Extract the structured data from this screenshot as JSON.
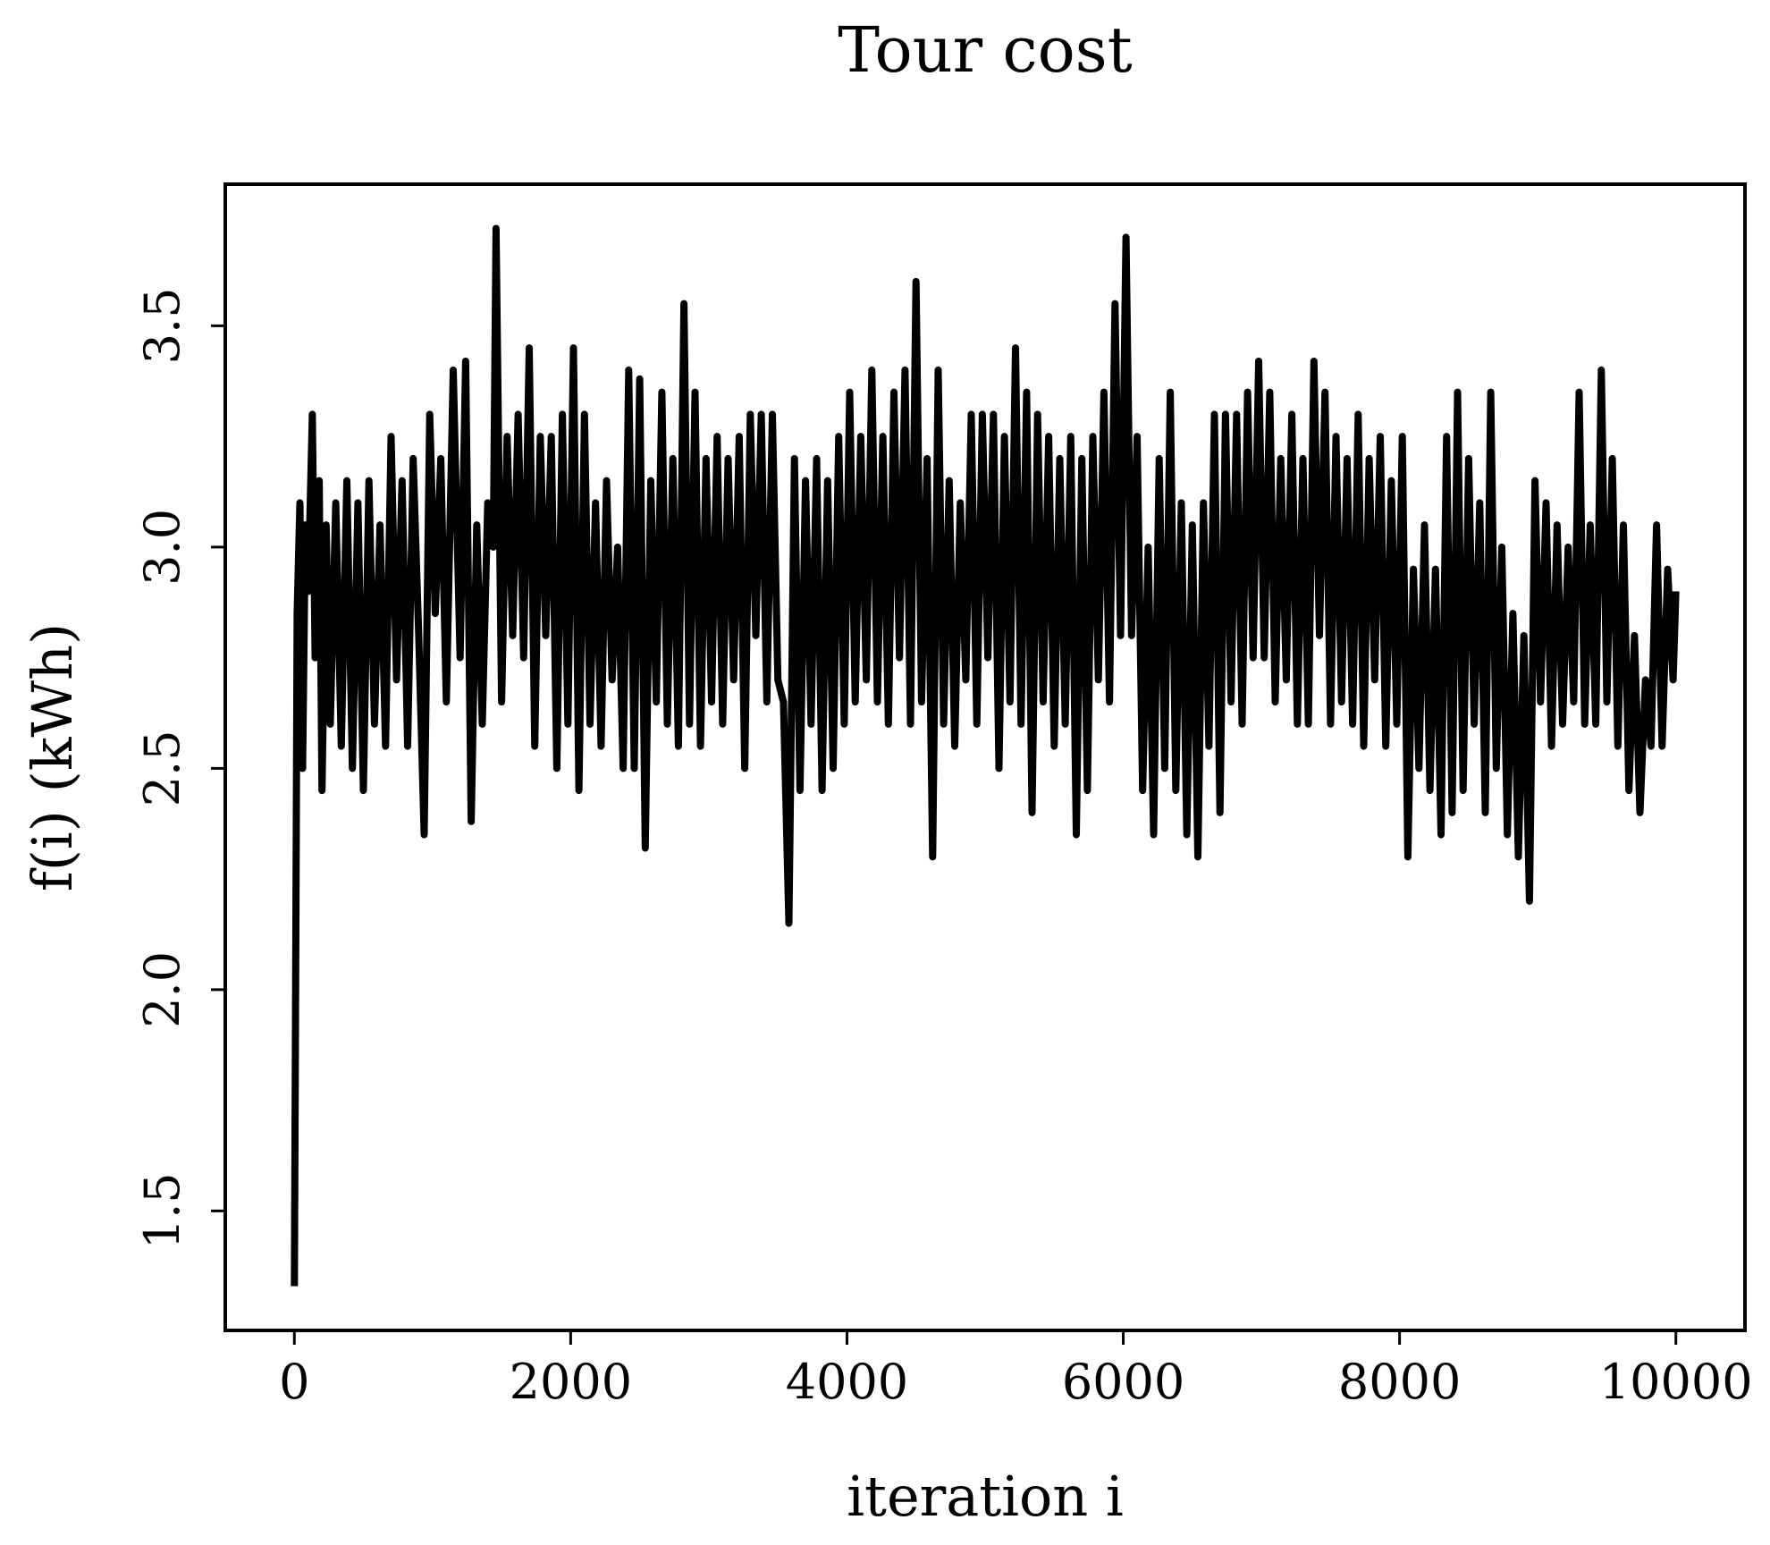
{
  "chart_data": {
    "type": "line",
    "title": "Tour cost",
    "xlabel": "iteration i",
    "ylabel": "f(i) (kWh)",
    "xlim": [
      -500,
      10500
    ],
    "ylim": [
      1.23,
      3.82
    ],
    "xticks": [
      0,
      2000,
      4000,
      6000,
      8000,
      10000
    ],
    "xtick_labels": [
      "0",
      "2000",
      "4000",
      "6000",
      "8000",
      "10000"
    ],
    "yticks": [
      1.5,
      2.0,
      2.5,
      3.0,
      3.5
    ],
    "ytick_labels": [
      "1.5",
      "2.0",
      "2.5",
      "3.0",
      "3.5"
    ],
    "grid": false,
    "line_color": "#000000",
    "series": [
      {
        "x": [
          0,
          10,
          20,
          40,
          60,
          80,
          100,
          130,
          150,
          180,
          200,
          230,
          260,
          300,
          340,
          380,
          420,
          460,
          500,
          540,
          580,
          620,
          660,
          700,
          740,
          780,
          820,
          860,
          900,
          940,
          980,
          1020,
          1060,
          1100,
          1150,
          1200,
          1240,
          1280,
          1320,
          1360,
          1400,
          1440,
          1460,
          1500,
          1540,
          1580,
          1620,
          1660,
          1700,
          1740,
          1780,
          1820,
          1860,
          1900,
          1940,
          1980,
          2020,
          2060,
          2100,
          2140,
          2180,
          2220,
          2260,
          2300,
          2340,
          2380,
          2420,
          2460,
          2500,
          2540,
          2580,
          2620,
          2660,
          2700,
          2740,
          2780,
          2820,
          2860,
          2900,
          2940,
          2980,
          3020,
          3060,
          3100,
          3140,
          3180,
          3220,
          3260,
          3300,
          3340,
          3380,
          3420,
          3460,
          3500,
          3540,
          3580,
          3620,
          3660,
          3700,
          3740,
          3780,
          3820,
          3860,
          3900,
          3940,
          3980,
          4020,
          4060,
          4100,
          4140,
          4180,
          4220,
          4260,
          4300,
          4340,
          4380,
          4420,
          4460,
          4500,
          4540,
          4580,
          4620,
          4660,
          4700,
          4740,
          4780,
          4820,
          4860,
          4900,
          4940,
          4980,
          5020,
          5060,
          5100,
          5140,
          5180,
          5220,
          5260,
          5300,
          5340,
          5380,
          5420,
          5460,
          5500,
          5540,
          5580,
          5620,
          5660,
          5700,
          5740,
          5780,
          5820,
          5860,
          5900,
          5940,
          5980,
          6020,
          6060,
          6100,
          6140,
          6180,
          6220,
          6260,
          6300,
          6340,
          6380,
          6420,
          6460,
          6500,
          6540,
          6580,
          6620,
          6660,
          6700,
          6740,
          6780,
          6820,
          6860,
          6900,
          6940,
          6980,
          7020,
          7060,
          7100,
          7140,
          7180,
          7220,
          7260,
          7300,
          7340,
          7380,
          7420,
          7460,
          7500,
          7540,
          7580,
          7620,
          7660,
          7700,
          7740,
          7780,
          7820,
          7860,
          7900,
          7940,
          7980,
          8020,
          8060,
          8100,
          8140,
          8180,
          8220,
          8260,
          8300,
          8340,
          8380,
          8420,
          8460,
          8500,
          8540,
          8580,
          8620,
          8660,
          8700,
          8740,
          8780,
          8820,
          8860,
          8900,
          8940,
          8980,
          9020,
          9060,
          9100,
          9140,
          9180,
          9220,
          9260,
          9300,
          9340,
          9380,
          9420,
          9460,
          9500,
          9540,
          9580,
          9620,
          9660,
          9700,
          9740,
          9780,
          9820,
          9860,
          9900,
          9940,
          9980,
          10000
        ],
        "y": [
          1.33,
          2.05,
          2.85,
          3.1,
          2.5,
          3.05,
          2.9,
          3.3,
          2.75,
          3.15,
          2.45,
          3.05,
          2.6,
          3.1,
          2.55,
          3.15,
          2.5,
          3.1,
          2.45,
          3.15,
          2.6,
          3.05,
          2.55,
          3.25,
          2.7,
          3.15,
          2.55,
          3.2,
          2.8,
          2.35,
          3.3,
          2.85,
          3.2,
          2.65,
          3.4,
          2.75,
          3.42,
          2.38,
          3.05,
          2.6,
          3.1,
          3.0,
          3.72,
          2.65,
          3.25,
          2.8,
          3.3,
          2.75,
          3.45,
          2.55,
          3.25,
          2.8,
          3.25,
          2.5,
          3.3,
          2.6,
          3.45,
          2.45,
          3.3,
          2.6,
          3.1,
          2.55,
          3.15,
          2.7,
          3.0,
          2.5,
          3.4,
          2.5,
          3.38,
          2.32,
          3.15,
          2.65,
          3.35,
          2.6,
          3.2,
          2.55,
          3.55,
          2.6,
          3.35,
          2.55,
          3.2,
          2.65,
          3.25,
          2.6,
          3.2,
          2.7,
          3.25,
          2.5,
          3.3,
          2.8,
          3.3,
          2.65,
          3.3,
          2.7,
          2.65,
          2.15,
          3.2,
          2.45,
          3.15,
          2.6,
          3.2,
          2.45,
          3.15,
          2.5,
          3.25,
          2.6,
          3.35,
          2.65,
          3.25,
          2.7,
          3.4,
          2.65,
          3.25,
          2.6,
          3.35,
          2.75,
          3.4,
          2.6,
          3.6,
          2.65,
          3.2,
          2.3,
          3.4,
          2.6,
          3.15,
          2.55,
          3.1,
          2.7,
          3.3,
          2.6,
          3.3,
          2.75,
          3.3,
          2.5,
          3.25,
          2.65,
          3.45,
          2.6,
          3.35,
          2.4,
          3.3,
          2.65,
          3.25,
          2.55,
          3.2,
          2.6,
          3.25,
          2.35,
          3.2,
          2.45,
          3.25,
          2.7,
          3.35,
          2.65,
          3.55,
          2.8,
          3.7,
          2.8,
          3.25,
          2.45,
          3.0,
          2.35,
          3.2,
          2.5,
          3.35,
          2.45,
          3.1,
          2.35,
          3.05,
          2.3,
          3.1,
          2.55,
          3.3,
          2.4,
          3.3,
          2.65,
          3.3,
          2.6,
          3.35,
          2.75,
          3.42,
          2.75,
          3.35,
          2.65,
          3.2,
          2.7,
          3.3,
          2.6,
          3.2,
          2.6,
          3.42,
          2.8,
          3.35,
          2.6,
          3.25,
          2.65,
          3.2,
          2.6,
          3.3,
          2.55,
          3.2,
          2.7,
          3.25,
          2.55,
          3.15,
          2.6,
          3.25,
          2.3,
          2.95,
          2.5,
          3.05,
          2.45,
          2.95,
          2.35,
          3.25,
          2.4,
          3.35,
          2.45,
          3.2,
          2.6,
          3.1,
          2.4,
          3.35,
          2.5,
          3.0,
          2.35,
          2.85,
          2.3,
          2.8,
          2.2,
          3.15,
          2.65,
          3.1,
          2.55,
          3.05,
          2.6,
          3.0,
          2.65,
          3.35,
          2.6,
          3.05,
          2.6,
          3.4,
          2.65,
          3.2,
          2.55,
          3.05,
          2.45,
          2.8,
          2.4,
          2.7,
          2.55,
          3.05,
          2.55,
          2.95,
          2.7,
          2.9
        ]
      }
    ]
  }
}
